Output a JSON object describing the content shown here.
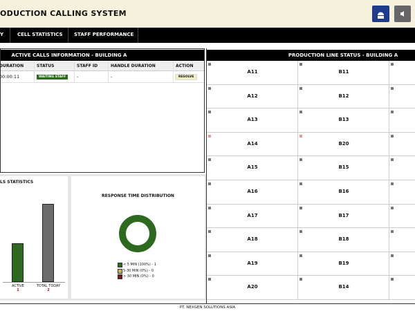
{
  "header": {
    "title": "ODUCTION CALLING SYSTEM"
  },
  "nav": {
    "items": [
      "Y",
      "CELL STATISTICS",
      "STAFF PERFORMANCE"
    ]
  },
  "active_calls": {
    "title": "ACTIVE CALLS INFORMATION - BUILDING A",
    "columns": [
      "DURATION",
      "STATUS",
      "STAFF ID",
      "HANDLE DURATION",
      "ACTION"
    ],
    "rows": [
      [
        "00:00:11",
        "WAITING STAFF",
        "-",
        "-",
        "RESOLVE"
      ]
    ]
  },
  "calls_statistics": {
    "title": "LS STATISTICS",
    "bars": [
      {
        "label": "ACTIVE",
        "value": 1,
        "color": "#2d6a1f"
      },
      {
        "label": "TOTAL TODAY",
        "value": 2,
        "color": "#6b6b6b"
      }
    ]
  },
  "response_time": {
    "title": "RESPONSE TIME DISTRIBUTION",
    "legend": [
      {
        "label": "< 5 MIN (100%) - 1",
        "color": "#2d6a1f"
      },
      {
        "label": "5-30 MIN (0%) - 0",
        "color": "#c9b45a"
      },
      {
        "label": "> 30 MIN (0%) - 0",
        "color": "#7a1a1a"
      }
    ]
  },
  "production_line": {
    "title": "PRODUCTION LINE STATUS - BUILDING A",
    "rows": [
      [
        {
          "label": "A11",
          "color": "#777"
        },
        {
          "label": "B11",
          "color": "#777"
        }
      ],
      [
        {
          "label": "A12",
          "color": "#777"
        },
        {
          "label": "B12",
          "color": "#777"
        }
      ],
      [
        {
          "label": "A13",
          "color": "#777"
        },
        {
          "label": "B13",
          "color": "#777"
        }
      ],
      [
        {
          "label": "A14",
          "color": "#e59a9a"
        },
        {
          "label": "B20",
          "color": "#e59a9a"
        }
      ],
      [
        {
          "label": "A15",
          "color": "#777"
        },
        {
          "label": "B15",
          "color": "#777"
        }
      ],
      [
        {
          "label": "A16",
          "color": "#777"
        },
        {
          "label": "B16",
          "color": "#777"
        }
      ],
      [
        {
          "label": "A17",
          "color": "#777"
        },
        {
          "label": "B17",
          "color": "#777"
        }
      ],
      [
        {
          "label": "A18",
          "color": "#777"
        },
        {
          "label": "B18",
          "color": "#777"
        }
      ],
      [
        {
          "label": "A19",
          "color": "#777"
        },
        {
          "label": "B19",
          "color": "#777"
        }
      ],
      [
        {
          "label": "A20",
          "color": "#777"
        },
        {
          "label": "B14",
          "color": "#777"
        }
      ]
    ]
  },
  "footer": {
    "text": "PT. NEXGEN SOLUTIONS ASIA"
  }
}
